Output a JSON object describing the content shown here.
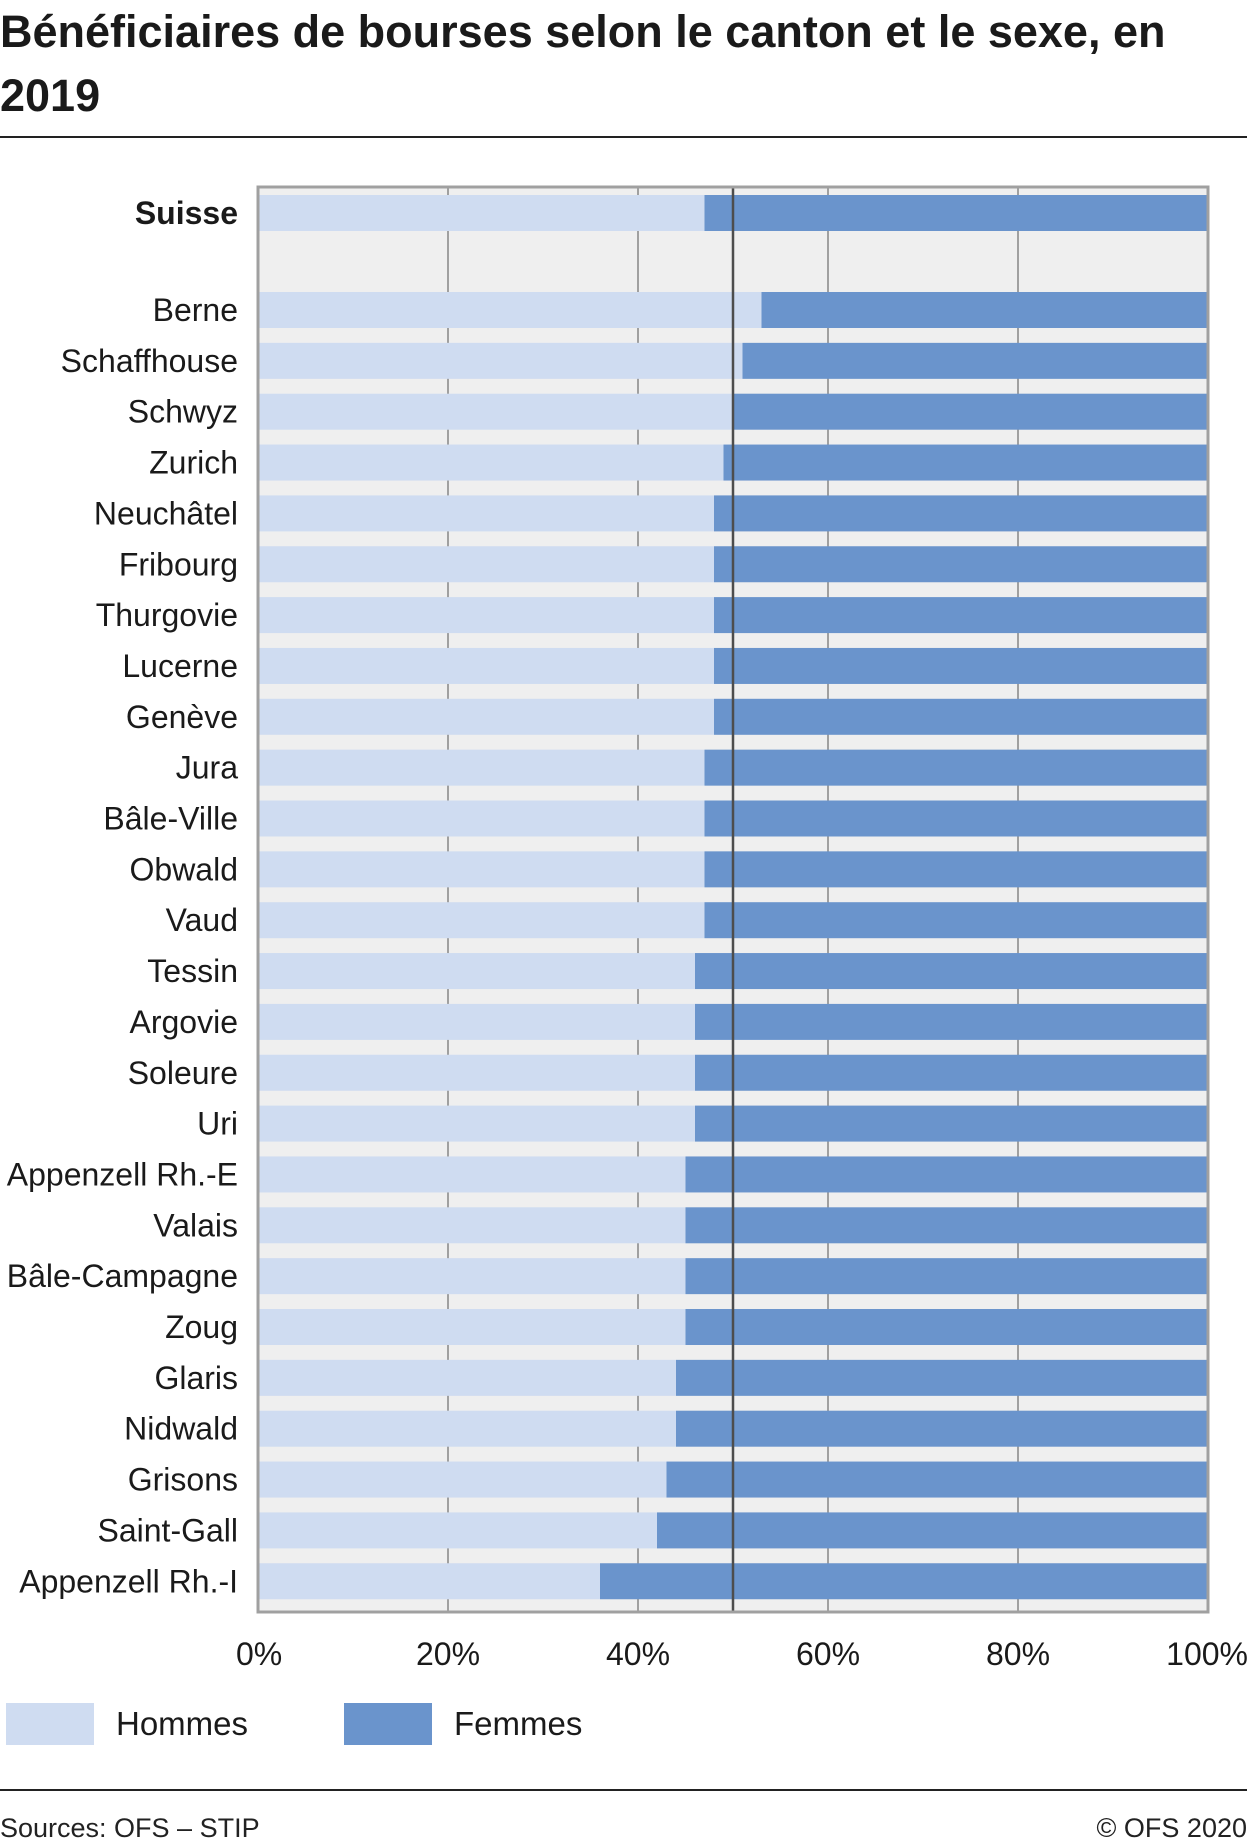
{
  "title": "Bénéficiaires de bourses selon le canton et le sexe, en 2019",
  "legend": {
    "hommes": "Hommes",
    "femmes": "Femmes"
  },
  "footer": {
    "source": "Sources: OFS – STIP",
    "copyright": "© OFS 2020"
  },
  "colors": {
    "hommes": "#cfdcf1",
    "femmes": "#6a94cc",
    "plot_bg": "#efefef",
    "grid": "#a0a0a0",
    "reference_line": "#4d4d4d"
  },
  "chart_data": {
    "type": "bar",
    "orientation": "horizontal",
    "stacked": "percent",
    "title": "Bénéficiaires de bourses selon le canton et le sexe, en 2019",
    "categories": [
      "Suisse",
      "Berne",
      "Schaffhouse",
      "Schwyz",
      "Zurich",
      "Neuchâtel",
      "Fribourg",
      "Thurgovie",
      "Lucerne",
      "Genève",
      "Jura",
      "Bâle-Ville",
      "Obwald",
      "Vaud",
      "Tessin",
      "Argovie",
      "Soleure",
      "Uri",
      "Appenzell Rh.-E",
      "Valais",
      "Bâle-Campagne",
      "Zoug",
      "Glaris",
      "Nidwald",
      "Grisons",
      "Saint-Gall",
      "Appenzell Rh.-I"
    ],
    "emphasized_category": "Suisse",
    "series": [
      {
        "name": "Hommes",
        "values": [
          47,
          53,
          51,
          50,
          49,
          48,
          48,
          48,
          48,
          48,
          47,
          47,
          47,
          47,
          46,
          46,
          46,
          46,
          45,
          45,
          45,
          45,
          44,
          44,
          43,
          42,
          36
        ]
      },
      {
        "name": "Femmes",
        "values": [
          53,
          47,
          49,
          50,
          51,
          52,
          52,
          52,
          52,
          52,
          53,
          53,
          53,
          53,
          54,
          54,
          54,
          54,
          55,
          55,
          55,
          55,
          56,
          56,
          57,
          58,
          64
        ]
      }
    ],
    "xticks": [
      "0%",
      "20%",
      "40%",
      "60%",
      "80%",
      "100%"
    ],
    "xlim": [
      0,
      100
    ],
    "reference_line": 50,
    "grid": true,
    "legend_position": "bottom-left"
  }
}
